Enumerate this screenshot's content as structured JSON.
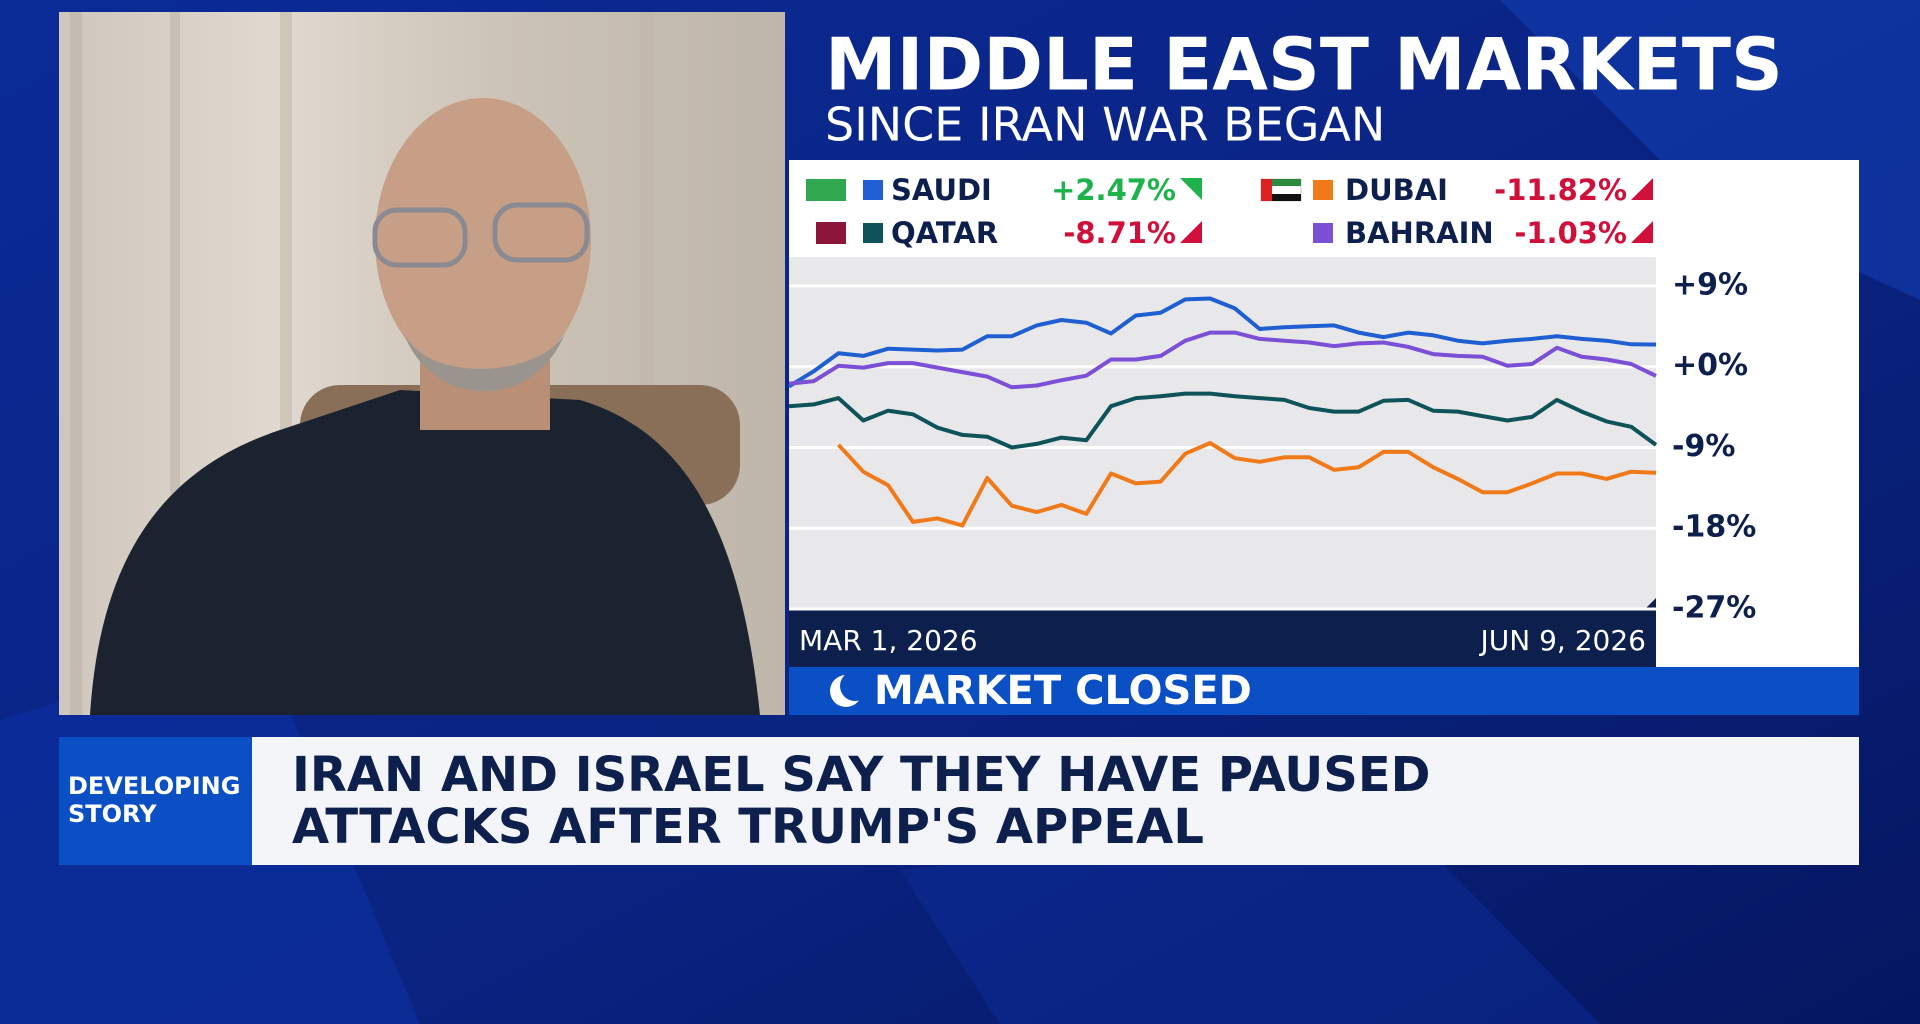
{
  "chart_data": {
    "type": "line",
    "title": "MIDDLE EAST MARKETS",
    "subtitle": "SINCE IRAN WAR BEGAN",
    "categories": [
      "MAR 1, 2026",
      null,
      null,
      null,
      null,
      null,
      null,
      null,
      null,
      null,
      null,
      null,
      null,
      null,
      null,
      null,
      null,
      null,
      null,
      null,
      null,
      null,
      null,
      null,
      null,
      null,
      null,
      null,
      null,
      null,
      null,
      null,
      null,
      null,
      null,
      "JUN 9, 2026"
    ],
    "series": [
      {
        "name": "SAUDI",
        "color": "#1f5fd1",
        "change": {
          "value": 2.47,
          "label": "+2.47%"
        },
        "values": [
          -2.2,
          -0.5,
          1.5,
          1.2,
          2.0,
          1.9,
          1.8,
          1.9,
          3.4,
          3.4,
          4.6,
          5.2,
          4.9,
          3.7,
          5.7,
          6.0,
          7.5,
          7.6,
          6.5,
          4.2,
          4.4,
          4.5,
          4.6,
          3.8,
          3.3,
          3.8,
          3.5,
          2.9,
          2.6,
          2.9,
          3.1,
          3.4,
          3.1,
          2.9,
          2.5,
          2.47
        ]
      },
      {
        "name": "DUBAI",
        "color": "#f07a1a",
        "change": {
          "value": -11.82,
          "label": "-11.82%"
        },
        "values": [
          null,
          null,
          -8.7,
          -11.7,
          -13.2,
          -17.3,
          -16.9,
          -17.7,
          -12.4,
          -15.5,
          -16.2,
          -15.4,
          -16.4,
          -11.9,
          -13.0,
          -12.8,
          -9.7,
          -8.5,
          -10.2,
          -10.6,
          -10.1,
          -10.1,
          -11.5,
          -11.2,
          -9.5,
          -9.5,
          -11.2,
          -12.5,
          -14.0,
          -14.0,
          -13.0,
          -11.9,
          -11.9,
          -12.5,
          -11.7,
          -11.82
        ]
      },
      {
        "name": "QATAR",
        "color": "#0d5359",
        "change": {
          "value": -8.71,
          "label": "-8.71%"
        },
        "values": [
          -4.4,
          -4.2,
          -3.5,
          -6.0,
          -4.9,
          -5.3,
          -6.8,
          -7.6,
          -7.8,
          -9.0,
          -8.6,
          -7.9,
          -8.2,
          -4.4,
          -3.5,
          -3.3,
          -3.0,
          -3.0,
          -3.3,
          -3.5,
          -3.7,
          -4.6,
          -5.0,
          -5.0,
          -3.8,
          -3.7,
          -4.9,
          -5.0,
          -5.5,
          -6.0,
          -5.6,
          -3.7,
          -5.0,
          -6.1,
          -6.7,
          -8.71
        ]
      },
      {
        "name": "BAHRAIN",
        "color": "#7b4fd6",
        "change": {
          "value": -1.03,
          "label": "-1.03%"
        },
        "values": [
          -1.9,
          -1.6,
          0.1,
          -0.1,
          0.4,
          0.4,
          -0.1,
          -0.6,
          -1.1,
          -2.3,
          -2.1,
          -1.5,
          -1.0,
          0.8,
          0.8,
          1.2,
          2.9,
          3.8,
          3.8,
          3.1,
          2.9,
          2.7,
          2.3,
          2.6,
          2.7,
          2.2,
          1.4,
          1.2,
          1.1,
          0.1,
          0.3,
          2.1,
          1.1,
          0.8,
          0.3,
          -1.03
        ]
      }
    ],
    "ylim": [
      -27,
      12
    ],
    "yticks": [
      {
        "value": 9,
        "label": "+9%"
      },
      {
        "value": 0,
        "label": "+0%"
      },
      {
        "value": -9,
        "label": "-9%"
      },
      {
        "value": -18,
        "label": "-18%"
      },
      {
        "value": -27,
        "label": "-27%"
      }
    ],
    "grid": true
  },
  "status": "MARKET CLOSED",
  "lower_third": {
    "tag": [
      "DEVELOPING",
      "STORY"
    ],
    "headline": [
      "IRAN AND ISRAEL SAY THEY HAVE PAUSED",
      "ATTACKS AFTER TRUMP'S APPEAL"
    ]
  }
}
